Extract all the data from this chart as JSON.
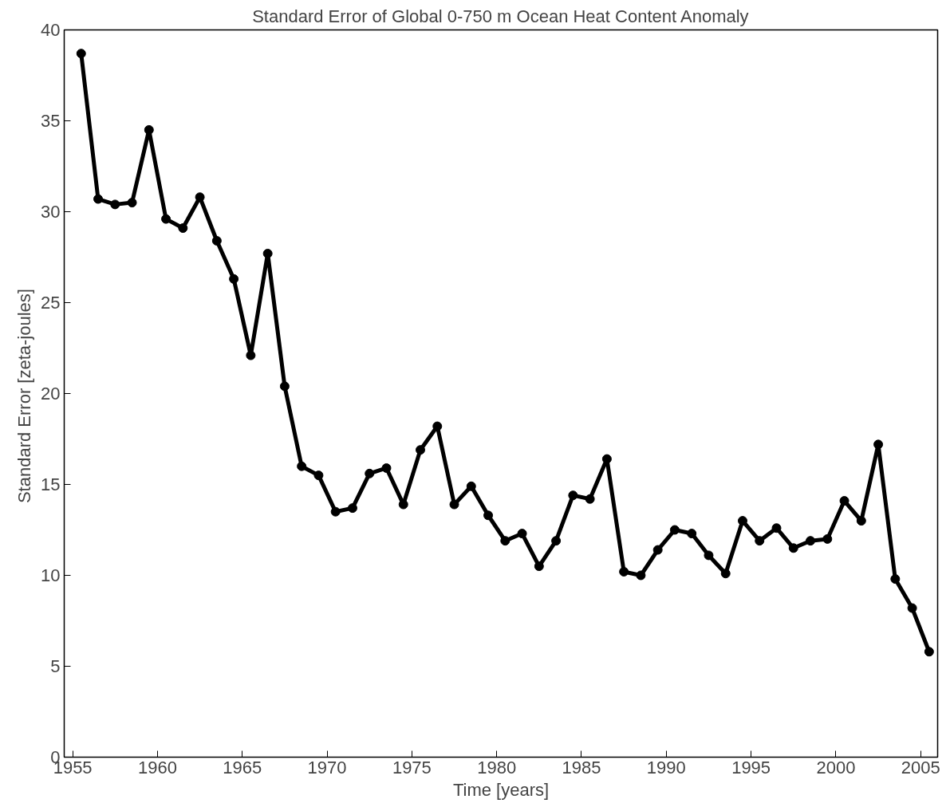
{
  "chart_data": {
    "type": "line",
    "title": "Standard Error of Global 0-750 m Ocean Heat Content Anomaly",
    "xlabel": "Time [years]",
    "ylabel": "Standard Error  [zeta-joules]",
    "x": [
      1955.5,
      1956.5,
      1957.5,
      1958.5,
      1959.5,
      1960.5,
      1961.5,
      1962.5,
      1963.5,
      1964.5,
      1965.5,
      1966.5,
      1967.5,
      1968.5,
      1969.5,
      1970.5,
      1971.5,
      1972.5,
      1973.5,
      1974.5,
      1975.5,
      1976.5,
      1977.5,
      1978.5,
      1979.5,
      1980.5,
      1981.5,
      1982.5,
      1983.5,
      1984.5,
      1985.5,
      1986.5,
      1987.5,
      1988.5,
      1989.5,
      1990.5,
      1991.5,
      1992.5,
      1993.5,
      1994.5,
      1995.5,
      1996.5,
      1997.5,
      1998.5,
      1999.5,
      2000.5,
      2001.5,
      2002.5,
      2003.5,
      2004.5,
      2005.5
    ],
    "series": [
      {
        "color": "#000000",
        "values": [
          38.7,
          30.7,
          30.4,
          30.5,
          34.5,
          29.6,
          29.1,
          30.8,
          28.4,
          26.3,
          22.1,
          27.7,
          20.4,
          16.0,
          15.5,
          13.5,
          13.7,
          15.6,
          15.9,
          13.9,
          16.9,
          18.2,
          13.9,
          14.9,
          13.3,
          11.9,
          12.3,
          10.5,
          11.9,
          14.4,
          14.2,
          16.4,
          10.2,
          10.0,
          11.4,
          12.5,
          12.3,
          11.1,
          10.1,
          13.0,
          11.9,
          12.6,
          11.5,
          11.9,
          12.0,
          14.1,
          13.0,
          17.2,
          9.8,
          8.2,
          5.8
        ]
      }
    ],
    "xlim": [
      1954.5,
      2006
    ],
    "ylim": [
      0,
      40
    ],
    "xticks": [
      1955,
      1960,
      1965,
      1970,
      1975,
      1980,
      1985,
      1990,
      1995,
      2000,
      2005
    ],
    "yticks": [
      0,
      5,
      10,
      15,
      20,
      25,
      30,
      35,
      40
    ],
    "grid": false,
    "marker": "circle",
    "line_style": "solid"
  }
}
